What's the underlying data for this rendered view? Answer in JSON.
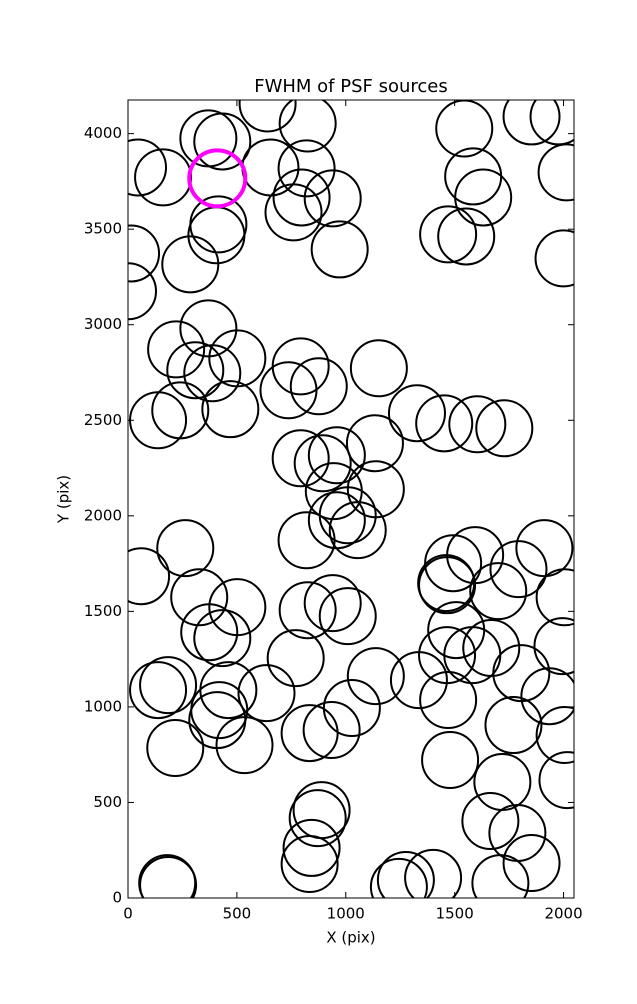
{
  "chart_data": {
    "type": "scatter",
    "title": "FWHM of PSF sources",
    "xlabel": "X (pix)",
    "ylabel": "Y (pix)",
    "xlim": [
      0,
      2048
    ],
    "ylim": [
      0,
      4176
    ],
    "xticks": [
      0,
      500,
      1000,
      1500,
      2000
    ],
    "yticks": [
      0,
      500,
      1000,
      1500,
      2000,
      2500,
      3000,
      3500,
      4000
    ],
    "color": "#000000",
    "x": [
      46,
      161,
      369,
      433,
      641,
      654,
      825,
      820,
      797,
      760,
      940,
      972,
      415,
      406,
      286,
      14,
      0,
      1544,
      1853,
      1977,
      1585,
      1631,
      1470,
      1553,
      2014,
      2000,
      369,
      221,
      502,
      387,
      309,
      240,
      138,
      470,
      793,
      737,
      876,
      1152,
      1327,
      1452,
      1604,
      1728,
      793,
      959,
      894,
      1134,
      1138,
      945,
      1009,
      959,
      1055,
      820,
      263,
      60,
      327,
      502,
      373,
      433,
      825,
      940,
      1009,
      770,
      1138,
      1336,
      1461,
      1465,
      1493,
      1594,
      1700,
      1793,
      1912,
      2005,
      1507,
      1465,
      1581,
      1668,
      1806,
      1995,
      1935,
      2005,
      2018,
      138,
      184,
      461,
      419,
      410,
      217,
      535,
      636,
      834,
      935,
      1028,
      1470,
      1770,
      1479,
      1719,
      889,
      871,
      843,
      834,
      1664,
      1788,
      1853,
      1710,
      180,
      184,
      1244,
      1276,
      1401
    ],
    "y": [
      3823,
      3771,
      3975,
      3959,
      4158,
      3823,
      4053,
      3818,
      3666,
      3588,
      3661,
      3394,
      3525,
      3468,
      3316,
      3373,
      3175,
      4027,
      4090,
      4090,
      3776,
      3666,
      3473,
      3462,
      3797,
      3347,
      2981,
      2871,
      2824,
      2746,
      2762,
      2552,
      2500,
      2558,
      2782,
      2657,
      2678,
      2772,
      2537,
      2484,
      2479,
      2458,
      2301,
      2317,
      2275,
      2380,
      2139,
      2129,
      2003,
      1977,
      1925,
      1872,
      1831,
      1684,
      1574,
      1522,
      1391,
      1360,
      1506,
      1543,
      1475,
      1255,
      1161,
      1140,
      1648,
      1637,
      1752,
      1794,
      1606,
      1721,
      1831,
      1574,
      1402,
      1271,
      1271,
      1308,
      1177,
      1318,
      1056,
      853,
      617,
      1088,
      1114,
      1088,
      983,
      931,
      785,
      800,
      1072,
      863,
      879,
      994,
      1036,
      905,
      722,
      607,
      460,
      418,
      262,
      178,
      403,
      340,
      183,
      78,
      78,
      68,
      58,
      94,
      105
    ],
    "highlight": {
      "x": 410,
      "y": 3766,
      "color": "#ff00ff"
    }
  }
}
